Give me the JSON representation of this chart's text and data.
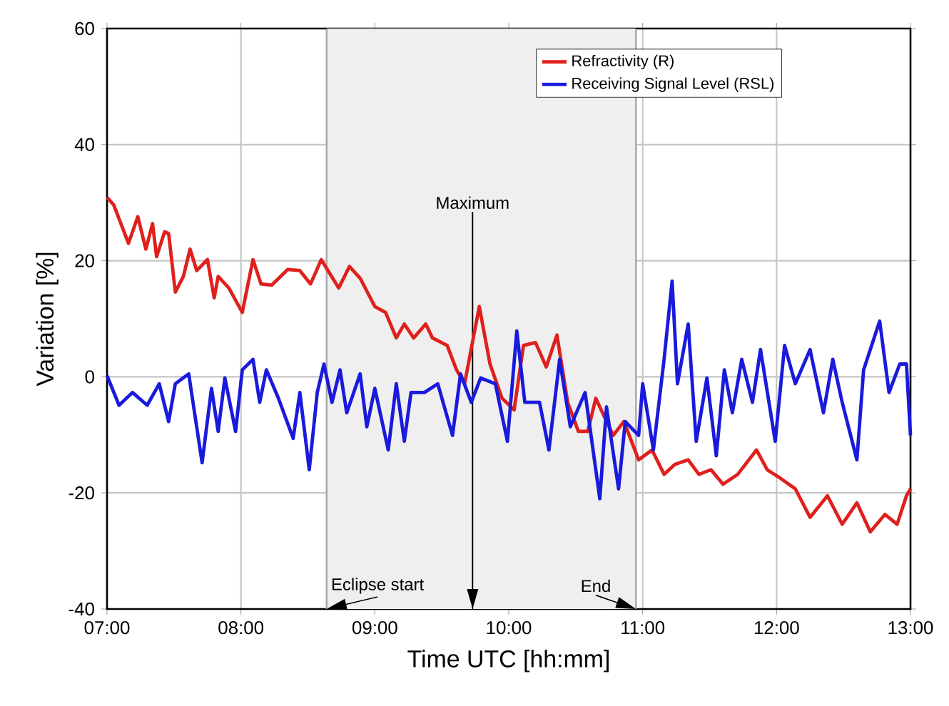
{
  "chart_data": {
    "type": "line",
    "xlabel": "Time UTC [hh:mm]",
    "ylabel": "Variation [%]",
    "xlim": [
      7,
      13
    ],
    "ylim": [
      -40,
      60
    ],
    "xticks": [
      {
        "value": 7,
        "label": "07:00"
      },
      {
        "value": 8,
        "label": "08:00"
      },
      {
        "value": 9,
        "label": "09:00"
      },
      {
        "value": 10,
        "label": "10:00"
      },
      {
        "value": 11,
        "label": "11:00"
      },
      {
        "value": 12,
        "label": "12:00"
      },
      {
        "value": 13,
        "label": "13:00"
      }
    ],
    "yticks": [
      -40,
      -20,
      0,
      20,
      40,
      60
    ],
    "grid": true,
    "legend": "top right",
    "bands": [
      {
        "axis": "x",
        "from": 8.64,
        "to": 10.95,
        "color": "#efefef"
      }
    ],
    "ref_lines": [
      {
        "axis": "x",
        "value": 8.64,
        "color": "#a6a6a6",
        "label": "Eclipse start"
      },
      {
        "axis": "x",
        "value": 9.73,
        "label": "Maximum"
      },
      {
        "axis": "x",
        "value": 10.95,
        "color": "#a6a6a6",
        "label": "End"
      }
    ],
    "series": [
      {
        "name": "Refractivity (R)",
        "color": "#e0201c",
        "x": [
          7.0,
          7.05,
          7.16,
          7.23,
          7.29,
          7.34,
          7.37,
          7.43,
          7.46,
          7.51,
          7.57,
          7.62,
          7.67,
          7.75,
          7.8,
          7.83,
          7.91,
          8.01,
          8.09,
          8.15,
          8.23,
          8.35,
          8.44,
          8.52,
          8.6,
          8.65,
          8.73,
          8.81,
          8.89,
          9.0,
          9.08,
          9.16,
          9.22,
          9.29,
          9.38,
          9.43,
          9.54,
          9.61,
          9.67,
          9.78,
          9.86,
          9.95,
          10.04,
          10.11,
          10.2,
          10.28,
          10.36,
          10.44,
          10.52,
          10.59,
          10.65,
          10.7,
          10.78,
          10.86,
          10.97,
          11.07,
          11.16,
          11.24,
          11.34,
          11.42,
          11.51,
          11.6,
          11.71,
          11.85,
          11.93,
          12.03,
          12.14,
          12.25,
          12.38,
          12.49,
          12.6,
          12.7,
          12.81,
          12.9,
          12.97,
          13.0
        ],
        "values": [
          30.9,
          29.6,
          23,
          27.6,
          22,
          26.4,
          20.7,
          25,
          24.7,
          14.6,
          17.3,
          22,
          18.3,
          20.2,
          13.6,
          17.3,
          15.3,
          11.1,
          20.2,
          16,
          15.8,
          18.5,
          18.3,
          16,
          20.2,
          18.3,
          15.3,
          19,
          17,
          12.1,
          11.1,
          6.7,
          9.1,
          6.7,
          9.1,
          6.7,
          5.4,
          1.2,
          -1.2,
          12.1,
          2.2,
          -3.7,
          -5.7,
          5.4,
          5.9,
          1.7,
          7.2,
          -4.4,
          -9.4,
          -9.4,
          -3.7,
          -6.2,
          -10.1,
          -7.7,
          -14.3,
          -12.6,
          -16.8,
          -15.1,
          -14.3,
          -16.8,
          -16,
          -18.5,
          -16.8,
          -12.6,
          -16,
          -17.5,
          -19.3,
          -24.2,
          -20.5,
          -25.4,
          -21.7,
          -26.7,
          -23.7,
          -25.4,
          -20.5,
          -19.3
        ]
      },
      {
        "name": "Receiving Signal Level (RSL)",
        "color": "#1a1adc",
        "x": [
          7.0,
          7.09,
          7.19,
          7.3,
          7.39,
          7.46,
          7.51,
          7.61,
          7.71,
          7.78,
          7.83,
          7.88,
          7.96,
          8.01,
          8.09,
          8.14,
          8.19,
          8.28,
          8.39,
          8.44,
          8.51,
          8.57,
          8.62,
          8.68,
          8.74,
          8.79,
          8.89,
          8.94,
          9.0,
          9.1,
          9.16,
          9.22,
          9.27,
          9.37,
          9.47,
          9.58,
          9.64,
          9.72,
          9.79,
          9.9,
          9.99,
          10.06,
          10.12,
          10.23,
          10.3,
          10.38,
          10.46,
          10.57,
          10.68,
          10.73,
          10.82,
          10.87,
          10.97,
          11.0,
          11.08,
          11.16,
          11.22,
          11.26,
          11.34,
          11.4,
          11.48,
          11.55,
          11.61,
          11.67,
          11.74,
          11.82,
          11.88,
          11.99,
          12.06,
          12.14,
          12.25,
          12.35,
          12.42,
          12.49,
          12.6,
          12.65,
          12.77,
          12.84,
          12.92,
          12.97,
          13.0
        ],
        "values": [
          0.2,
          -4.9,
          -2.7,
          -4.9,
          -1.2,
          -7.7,
          -1.2,
          0.5,
          -14.8,
          -2,
          -9.4,
          -0.2,
          -9.4,
          1.2,
          3,
          -4.4,
          1.2,
          -3.7,
          -10.6,
          -2.7,
          -16,
          -2.7,
          2.2,
          -4.4,
          1.2,
          -6.2,
          0.5,
          -8.6,
          -2,
          -12.6,
          -1.2,
          -11.1,
          -2.7,
          -2.7,
          -1.2,
          -10.1,
          0.5,
          -4.4,
          -0.2,
          -1.2,
          -11.1,
          7.9,
          -4.4,
          -4.4,
          -12.6,
          3,
          -8.6,
          -2.7,
          -21,
          -5.2,
          -19.3,
          -7.7,
          -10.1,
          -1.2,
          -12.6,
          3,
          16.5,
          -1.2,
          9.1,
          -11.1,
          -0.2,
          -13.6,
          1.2,
          -6.2,
          3,
          -4.4,
          4.7,
          -11.1,
          5.4,
          -1.2,
          4.7,
          -6.2,
          3,
          -4.4,
          -14.3,
          1.2,
          9.6,
          -2.7,
          2.2,
          2.2,
          -10.1
        ]
      }
    ]
  }
}
